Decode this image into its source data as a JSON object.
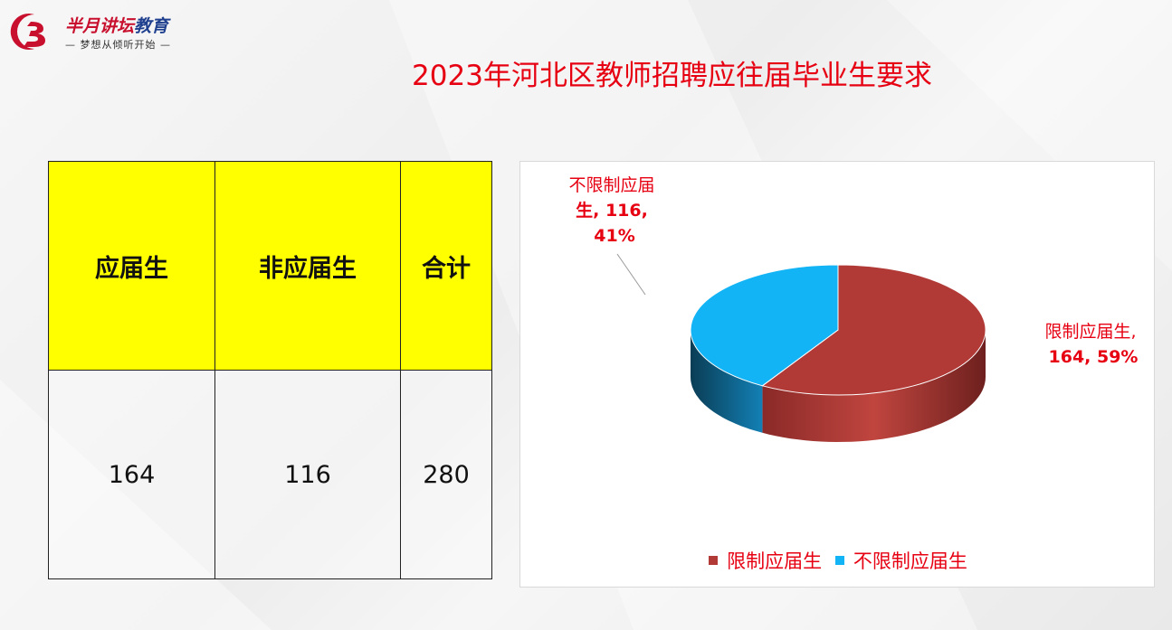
{
  "logo": {
    "name_red": "半月讲坛",
    "name_blue": "教育",
    "slogan": "— 梦想从倾听开始 —",
    "icon": "crescent-logo-icon"
  },
  "page": {
    "title": "2023年河北区教师招聘应往届毕业生要求"
  },
  "table": {
    "headers": [
      "应届生",
      "非应届生",
      "合计"
    ],
    "values": [
      "164",
      "116",
      "280"
    ]
  },
  "chart_data": {
    "type": "pie",
    "title": "",
    "slices": [
      {
        "name": "限制应届生",
        "value": 164,
        "percent": "59%",
        "color": "#b13a37"
      },
      {
        "name": "不限制应届生",
        "value": 116,
        "percent": "41%",
        "color": "#13b4f5"
      }
    ],
    "labels": {
      "slice0_line1": "限制应届生,",
      "slice0_line2": "164, 59%",
      "slice1_line1": "不限制应届",
      "slice1_line2": "生, 116,",
      "slice1_line3": "41%"
    },
    "legend": [
      "限制应届生",
      "不限制应届生"
    ],
    "legend_position": "bottom"
  }
}
